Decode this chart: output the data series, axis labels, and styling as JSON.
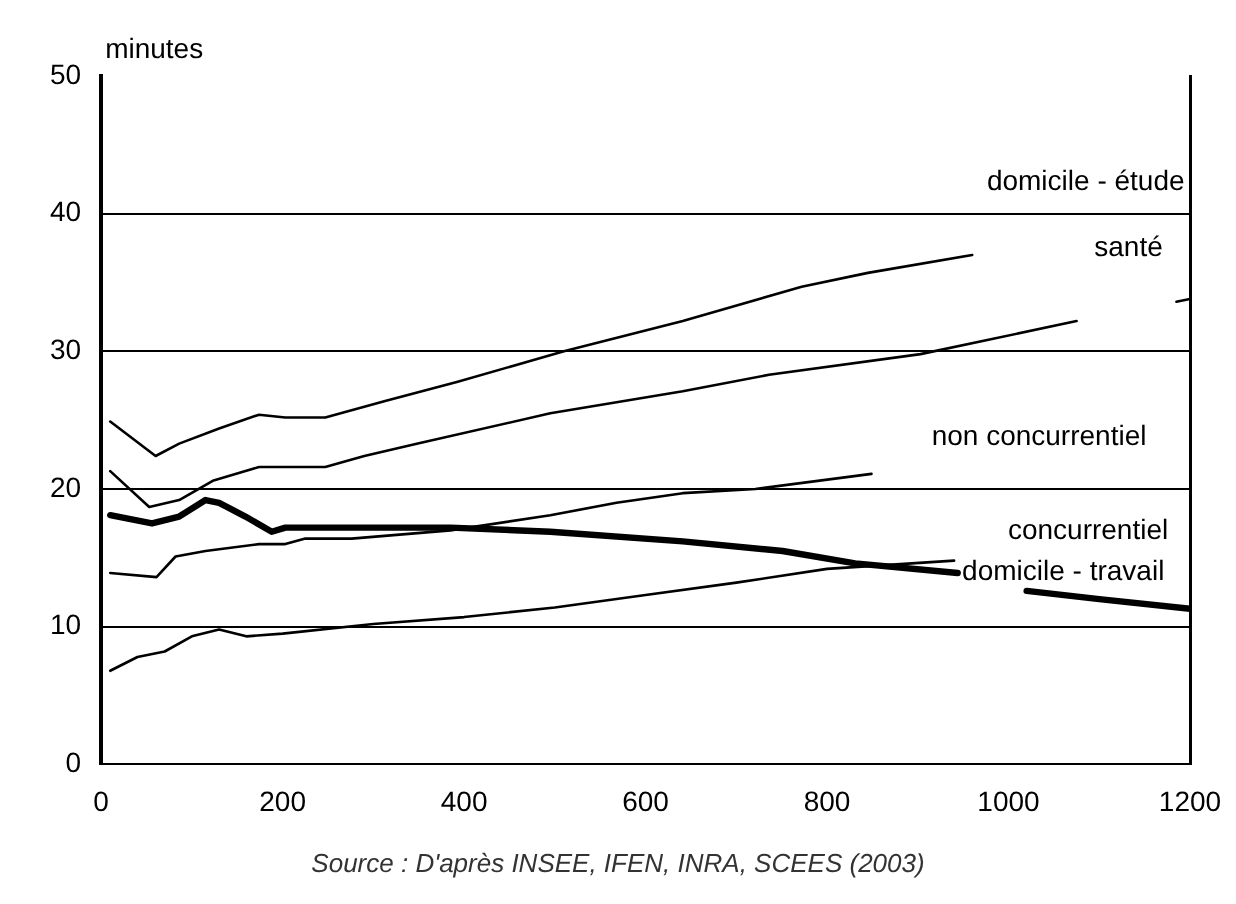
{
  "chart_data": {
    "type": "line",
    "ylabel": "minutes",
    "annotations": [
      "Source : D'après  INSEE, IFEN, INRA, SCEES (2003)"
    ],
    "xlim": [
      0,
      1200
    ],
    "xticks": [
      0,
      200,
      400,
      600,
      800,
      1000,
      1200
    ],
    "ylim": [
      0,
      50
    ],
    "yticks": [
      0,
      10,
      20,
      30,
      40,
      50
    ],
    "grid": "y",
    "marker": "none",
    "line_style": "solid",
    "legend": false,
    "series": [
      {
        "name": "domicile - étude",
        "color": "#000000",
        "x": [
          10,
          60,
          86,
          130,
          174,
          203,
          247,
          313,
          393,
          510,
          641,
          772,
          845,
          960
        ],
        "values": [
          24.9,
          22.4,
          23.3,
          24.4,
          25.4,
          25.2,
          25.2,
          26.4,
          27.8,
          30.0,
          32.2,
          34.7,
          35.7,
          37.0
        ]
      },
      {
        "name": "santé",
        "color": "#000000",
        "x": [
          10,
          53,
          86,
          123,
          174,
          247,
          290,
          349,
          495,
          641,
          736,
          903,
          1075,
          1130,
          1185,
          1200
        ],
        "values": [
          21.3,
          18.7,
          19.2,
          20.6,
          21.6,
          21.6,
          22.4,
          23.3,
          25.5,
          27.1,
          28.3,
          29.8,
          32.2,
          null,
          33.6,
          33.8
        ]
      },
      {
        "name": "non concurrentiel",
        "color": "#000000",
        "x": [
          10,
          61,
          82,
          115,
          174,
          203,
          225,
          276,
          385,
          495,
          568,
          641,
          721,
          849
        ],
        "values": [
          13.9,
          13.6,
          15.1,
          15.5,
          16.0,
          16.0,
          16.4,
          16.4,
          17.0,
          18.1,
          19.0,
          19.7,
          20.0,
          21.1
        ]
      },
      {
        "name": "concurrentiel",
        "color": "#000000",
        "x": [
          10,
          56,
          86,
          115,
          130,
          159,
          188,
          203,
          385,
          495,
          641,
          751,
          831,
          944,
          980,
          1020,
          1100,
          1200
        ],
        "values": [
          18.1,
          17.5,
          18.0,
          19.2,
          19.0,
          18.0,
          16.9,
          17.2,
          17.2,
          16.9,
          16.2,
          15.5,
          14.6,
          13.9,
          null,
          12.6,
          12.0,
          11.3
        ]
      },
      {
        "name": "domicile - travail",
        "color": "#000000",
        "x": [
          10,
          40,
          70,
          100,
          130,
          160,
          200,
          300,
          400,
          500,
          600,
          700,
          800,
          940
        ],
        "values": [
          6.8,
          7.8,
          8.2,
          9.3,
          9.8,
          9.3,
          9.5,
          10.2,
          10.7,
          11.4,
          12.3,
          13.2,
          14.2,
          14.8
        ]
      }
    ]
  }
}
